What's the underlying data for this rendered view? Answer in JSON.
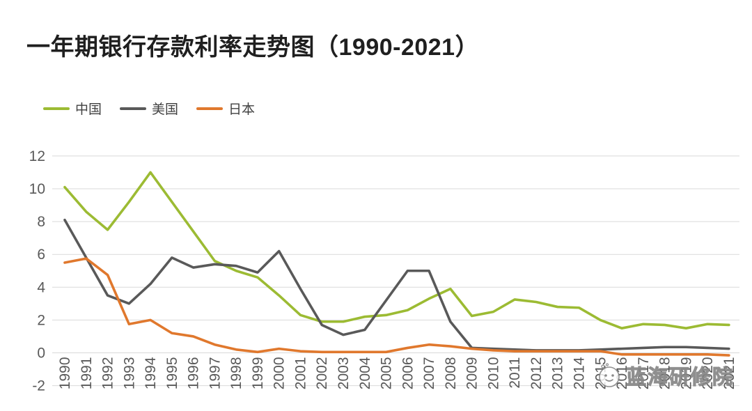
{
  "title": "一年期银行存款利率走势图（1990-2021）",
  "legend": {
    "items": [
      {
        "id": "china",
        "label": "中国",
        "color": "#9cbb33"
      },
      {
        "id": "usa",
        "label": "美国",
        "color": "#595959"
      },
      {
        "id": "japan",
        "label": "日本",
        "color": "#e0782d"
      }
    ]
  },
  "watermark": {
    "text": "蓝海研修院"
  },
  "chart_data": {
    "type": "line",
    "title": "一年期银行存款利率走势图（1990-2021）",
    "x": [
      1990,
      1991,
      1992,
      1993,
      1994,
      1995,
      1996,
      1997,
      1998,
      1999,
      2000,
      2001,
      2002,
      2003,
      2004,
      2005,
      2006,
      2007,
      2008,
      2009,
      2010,
      2011,
      2012,
      2013,
      2014,
      2015,
      2016,
      2017,
      2018,
      2019,
      2020,
      2021
    ],
    "series": [
      {
        "name": "中国",
        "color": "#9cbb33",
        "values": [
          10.1,
          8.6,
          7.5,
          9.2,
          11.0,
          9.2,
          7.4,
          5.6,
          5.0,
          4.6,
          3.5,
          2.3,
          1.9,
          1.9,
          2.2,
          2.3,
          2.6,
          3.3,
          3.9,
          2.25,
          2.5,
          3.25,
          3.1,
          2.8,
          2.75,
          2.0,
          1.5,
          1.75,
          1.7,
          1.5,
          1.75,
          1.7
        ]
      },
      {
        "name": "美国",
        "color": "#595959",
        "values": [
          8.1,
          5.8,
          3.5,
          3.0,
          4.2,
          5.8,
          5.2,
          5.4,
          5.3,
          4.9,
          6.2,
          3.9,
          1.7,
          1.1,
          1.4,
          3.2,
          5.0,
          5.0,
          1.9,
          0.3,
          0.25,
          0.2,
          0.15,
          0.15,
          0.15,
          0.2,
          0.25,
          0.3,
          0.35,
          0.35,
          0.3,
          0.25
        ]
      },
      {
        "name": "日本",
        "color": "#e0782d",
        "values": [
          5.5,
          5.75,
          4.75,
          1.75,
          2.0,
          1.2,
          1.0,
          0.5,
          0.2,
          0.05,
          0.25,
          0.1,
          0.05,
          0.05,
          0.05,
          0.05,
          0.3,
          0.5,
          0.4,
          0.25,
          0.15,
          0.1,
          0.1,
          0.1,
          0.1,
          0.1,
          -0.1,
          -0.1,
          -0.1,
          -0.1,
          -0.1,
          -0.15
        ]
      }
    ],
    "xlabel": "",
    "ylabel": "",
    "ylim": [
      -2,
      12
    ],
    "yticks": [
      -2,
      0,
      2,
      4,
      6,
      8,
      10,
      12
    ],
    "grid": true,
    "legend_position": "top-left",
    "x_tick_rotation": -90,
    "axis_color": "#595959",
    "grid_color": "#d9d9d9"
  }
}
